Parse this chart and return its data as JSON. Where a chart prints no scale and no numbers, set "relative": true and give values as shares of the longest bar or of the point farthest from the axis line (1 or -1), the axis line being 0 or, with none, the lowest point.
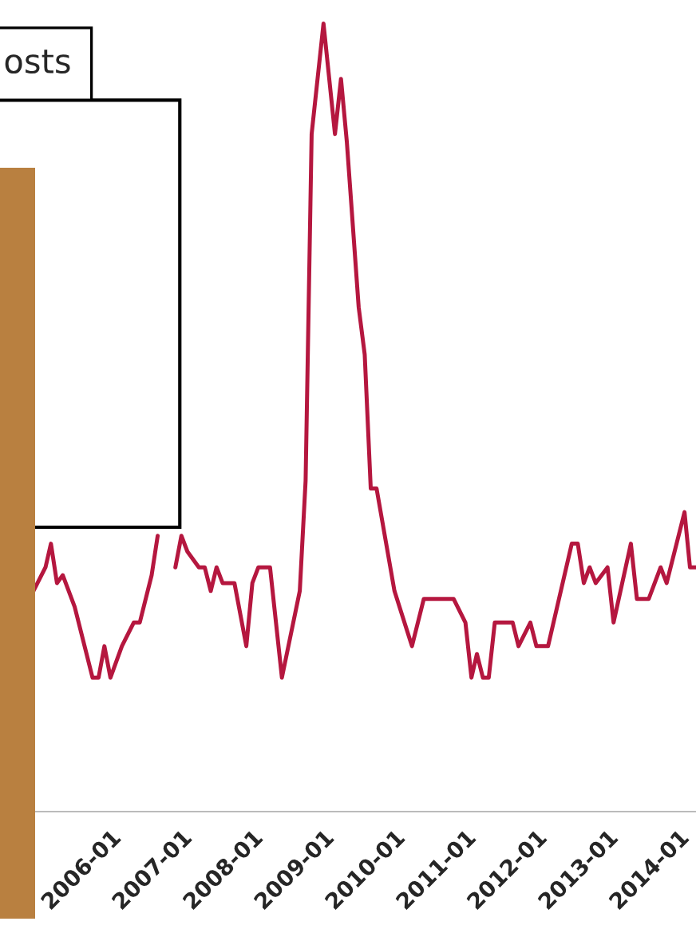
{
  "chart_data": {
    "type": "line",
    "relative": true,
    "x": [
      "2004-12",
      "2005-02",
      "2005-03",
      "2005-04",
      "2005-05",
      "2005-07",
      "2005-10",
      "2005-11",
      "2005-12",
      "2006-01",
      "2006-03",
      "2006-05",
      "2006-06",
      "2006-08",
      "2006-09",
      "2006-11",
      "2006-12",
      "2007-01",
      "2007-02",
      "2007-04",
      "2007-05",
      "2007-06",
      "2007-07",
      "2007-08",
      "2007-10",
      "2007-12",
      "2008-01",
      "2008-02",
      "2008-04",
      "2008-06",
      "2008-09",
      "2008-10",
      "2008-11",
      "2009-01",
      "2009-03",
      "2009-04",
      "2009-05",
      "2009-07",
      "2009-08",
      "2009-09",
      "2009-10",
      "2010-01",
      "2010-04",
      "2010-06",
      "2010-11",
      "2011-01",
      "2011-02",
      "2011-03",
      "2011-04",
      "2011-05",
      "2011-06",
      "2011-09",
      "2011-10",
      "2011-12",
      "2012-01",
      "2012-03",
      "2012-07",
      "2012-08",
      "2012-09",
      "2012-10",
      "2012-11",
      "2013-01",
      "2013-02",
      "2013-05",
      "2013-06",
      "2013-08",
      "2013-10",
      "2013-11",
      "2014-02",
      "2014-03",
      "2014-04"
    ],
    "series": [
      {
        "color": "#b5173f",
        "values": [
          0.28,
          0.31,
          0.34,
          0.29,
          0.3,
          0.26,
          0.17,
          0.17,
          0.21,
          0.17,
          0.21,
          0.24,
          0.24,
          0.3,
          0.35,
          null,
          0.31,
          0.35,
          0.33,
          0.31,
          0.31,
          0.28,
          0.31,
          0.29,
          0.29,
          0.21,
          0.29,
          0.31,
          0.31,
          0.17,
          0.28,
          0.42,
          0.86,
          1,
          0.86,
          0.93,
          0.85,
          0.64,
          0.58,
          0.41,
          0.41,
          0.28,
          0.21,
          0.27,
          0.27,
          0.24,
          0.17,
          0.2,
          0.17,
          0.17,
          0.24,
          0.24,
          0.21,
          0.24,
          0.21,
          0.21,
          0.34,
          0.34,
          0.29,
          0.31,
          0.29,
          0.31,
          0.24,
          0.34,
          0.27,
          0.27,
          0.31,
          0.29,
          0.38,
          0.31,
          0.31
        ]
      }
    ],
    "xlim": [
      "2004-06-12",
      "2014-04-01"
    ],
    "xticks": [
      "2006-01",
      "2007-01",
      "2008-01",
      "2009-01",
      "2010-01",
      "2011-01",
      "2012-01",
      "2013-01",
      "2014-01"
    ],
    "annotations": [
      "osts"
    ],
    "grid": false,
    "legend": false
  }
}
